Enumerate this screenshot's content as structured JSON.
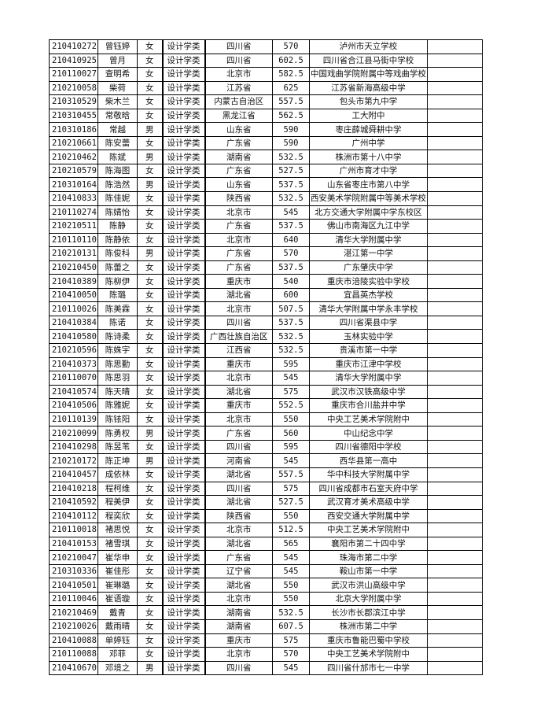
{
  "rows": [
    [
      "210410272",
      "曾钰婷",
      "女",
      "设计学类",
      "四川省",
      "570",
      "泸州市天立学校"
    ],
    [
      "210410925",
      "曾月",
      "女",
      "设计学类",
      "四川省",
      "602.5",
      "四川省合江县马街中学校"
    ],
    [
      "210110027",
      "查明希",
      "女",
      "设计学类",
      "北京市",
      "582.5",
      "中国戏曲学院附属中等戏曲学校"
    ],
    [
      "210210058",
      "柴荷",
      "女",
      "设计学类",
      "江苏省",
      "625",
      "江苏省新海高级中学"
    ],
    [
      "210310529",
      "柴木兰",
      "女",
      "设计学类",
      "内蒙古自治区",
      "557.5",
      "包头市第九中学"
    ],
    [
      "210310455",
      "常敬晗",
      "女",
      "设计学类",
      "黑龙江省",
      "562.5",
      "工大附中"
    ],
    [
      "210310186",
      "常越",
      "男",
      "设计学类",
      "山东省",
      "590",
      "枣庄薛城舜耕中学"
    ],
    [
      "210210661",
      "陈安蕾",
      "女",
      "设计学类",
      "广东省",
      "590",
      "广州中学"
    ],
    [
      "210210462",
      "陈斌",
      "男",
      "设计学类",
      "湖南省",
      "532.5",
      "株洲市第十八中学"
    ],
    [
      "210210579",
      "陈海图",
      "女",
      "设计学类",
      "广东省",
      "527.5",
      "广州市育才中学"
    ],
    [
      "210310164",
      "陈浩然",
      "男",
      "设计学类",
      "山东省",
      "537.5",
      "山东省枣庄市第八中学"
    ],
    [
      "210410833",
      "陈佳妮",
      "女",
      "设计学类",
      "陕西省",
      "532.5",
      "西安美术学院附属中等美术学校"
    ],
    [
      "210110274",
      "陈婧怡",
      "女",
      "设计学类",
      "北京市",
      "545",
      "北方交通大学附属中学东校区"
    ],
    [
      "210210511",
      "陈静",
      "女",
      "设计学类",
      "广东省",
      "537.5",
      "佛山市南海区九江中学"
    ],
    [
      "210110110",
      "陈静依",
      "女",
      "设计学类",
      "北京市",
      "640",
      "清华大学附属中学"
    ],
    [
      "210210131",
      "陈俊科",
      "男",
      "设计学类",
      "广东省",
      "570",
      "湛江第一中学"
    ],
    [
      "210210450",
      "陈蕾之",
      "女",
      "设计学类",
      "广东省",
      "537.5",
      "广东肇庆中学"
    ],
    [
      "210410389",
      "陈柳伊",
      "女",
      "设计学类",
      "重庆市",
      "540",
      "重庆市涪陵实验中学校"
    ],
    [
      "210410050",
      "陈璐",
      "女",
      "设计学类",
      "湖北省",
      "600",
      "宜昌英杰学校"
    ],
    [
      "210110026",
      "陈美霖",
      "女",
      "设计学类",
      "北京市",
      "507.5",
      "清华大学附属中学永丰学校"
    ],
    [
      "210410384",
      "陈诺",
      "女",
      "设计学类",
      "四川省",
      "537.5",
      "四川省渠县中学"
    ],
    [
      "210410580",
      "陈诗柔",
      "女",
      "设计学类",
      "广西壮族自治区",
      "532.5",
      "玉林实验中学"
    ],
    [
      "210210596",
      "陈姝宇",
      "女",
      "设计学类",
      "江西省",
      "532.5",
      "贵溪市第一中学"
    ],
    [
      "210410373",
      "陈思勤",
      "女",
      "设计学类",
      "重庆市",
      "595",
      "重庆市江津中学校"
    ],
    [
      "210110070",
      "陈思羽",
      "女",
      "设计学类",
      "北京市",
      "545",
      "清华大学附属中学"
    ],
    [
      "210410574",
      "陈天晴",
      "女",
      "设计学类",
      "湖北省",
      "575",
      "武汉市汉铁高级中学"
    ],
    [
      "210410506",
      "陈雅妮",
      "女",
      "设计学类",
      "重庆市",
      "552.5",
      "重庆市合川盐井中学"
    ],
    [
      "210110139",
      "陈铱阳",
      "女",
      "设计学类",
      "北京市",
      "550",
      "中央工艺美术学院附中"
    ],
    [
      "210210099",
      "陈勇权",
      "男",
      "设计学类",
      "广东省",
      "560",
      "中山纪念中学"
    ],
    [
      "210410298",
      "陈昱苇",
      "女",
      "设计学类",
      "四川省",
      "595",
      "四川省德阳中学校"
    ],
    [
      "210210172",
      "陈正坤",
      "男",
      "设计学类",
      "河南省",
      "545",
      "西华县第一高中"
    ],
    [
      "210410457",
      "成依林",
      "女",
      "设计学类",
      "湖北省",
      "557.5",
      "华中科技大学附属中学"
    ],
    [
      "210410218",
      "程柯维",
      "女",
      "设计学类",
      "四川省",
      "575",
      "四川省成都市石室天府中学"
    ],
    [
      "210410592",
      "程美伊",
      "女",
      "设计学类",
      "湖北省",
      "527.5",
      "武汉育才美术高级中学"
    ],
    [
      "210410112",
      "程奕欣",
      "女",
      "设计学类",
      "陕西省",
      "550",
      "西安交通大学附属中学"
    ],
    [
      "210110018",
      "褚思悦",
      "女",
      "设计学类",
      "北京市",
      "512.5",
      "中央工艺美术学院附中"
    ],
    [
      "210410153",
      "褚雪琪",
      "女",
      "设计学类",
      "湖北省",
      "565",
      "襄阳市第二十四中学"
    ],
    [
      "210210047",
      "崔华申",
      "女",
      "设计学类",
      "广东省",
      "545",
      "珠海市第二中学"
    ],
    [
      "210310336",
      "崔佳彤",
      "女",
      "设计学类",
      "辽宁省",
      "545",
      "鞍山市第一中学"
    ],
    [
      "210410501",
      "崔琳璐",
      "女",
      "设计学类",
      "湖北省",
      "550",
      "武汉市洪山高级中学"
    ],
    [
      "210110046",
      "崔语璇",
      "女",
      "设计学类",
      "北京市",
      "550",
      "北京大学附属中学"
    ],
    [
      "210210469",
      "戴青",
      "女",
      "设计学类",
      "湖南省",
      "532.5",
      "长沙市长郡滨江中学"
    ],
    [
      "210210026",
      "戴雨晴",
      "女",
      "设计学类",
      "湖南省",
      "607.5",
      "株洲市第二中学"
    ],
    [
      "210410088",
      "单婷钰",
      "女",
      "设计学类",
      "重庆市",
      "575",
      "重庆市鲁能巴蜀中学校"
    ],
    [
      "210110088",
      "邓菲",
      "女",
      "设计学类",
      "北京市",
      "570",
      "中央工艺美术学院附中"
    ],
    [
      "210410670",
      "邓境之",
      "男",
      "设计学类",
      "四川省",
      "545",
      "四川省什邡市七一中学"
    ]
  ]
}
